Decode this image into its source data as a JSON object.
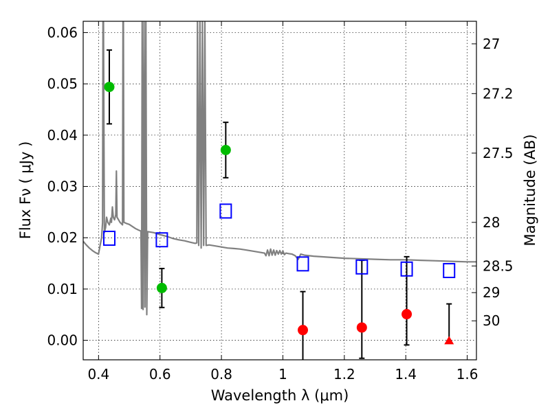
{
  "chart_data": {
    "type": "scatter",
    "title": "",
    "xlabel": "Wavelength  λ (μm)",
    "ylabel": "Flux  Fν  ( μJy )",
    "ylabel_right": "Magnitude (AB)",
    "xlim": [
      0.35,
      1.63
    ],
    "ylim": [
      -0.0038,
      0.0622
    ],
    "grid": true,
    "x_ticks": [
      0.4,
      0.6,
      0.8,
      1.0,
      1.2,
      1.4,
      1.6
    ],
    "x_tick_labels": [
      "0.4",
      "0.6",
      "0.8",
      "1",
      "1.2",
      "1.4",
      "1.6"
    ],
    "y_ticks": [
      0.0,
      0.01,
      0.02,
      0.03,
      0.04,
      0.05,
      0.06
    ],
    "y_tick_labels": [
      "0.00",
      "0.01",
      "0.02",
      "0.03",
      "0.04",
      "0.05",
      "0.06"
    ],
    "right_ticks": [
      {
        "label": "27",
        "flux": 0.0578
      },
      {
        "label": "27.2",
        "flux": 0.0481
      },
      {
        "label": "27.5",
        "flux": 0.0365
      },
      {
        "label": "28",
        "flux": 0.023
      },
      {
        "label": "28.5",
        "flux": 0.0145
      },
      {
        "label": "29",
        "flux": 0.0093
      },
      {
        "label": "30",
        "flux": 0.0038
      }
    ],
    "series": [
      {
        "marker": "circle",
        "color": "#00bb00",
        "points": [
          {
            "x": 0.435,
            "y": 0.0494,
            "err_low": 0.0072,
            "err_high": 0.0072
          },
          {
            "x": 0.606,
            "y": 0.0102,
            "err_low": 0.0038,
            "err_high": 0.0038
          },
          {
            "x": 0.814,
            "y": 0.0371,
            "err_low": 0.0054,
            "err_high": 0.0054
          }
        ]
      },
      {
        "marker": "circle",
        "color": "#ff0000",
        "points": [
          {
            "x": 1.065,
            "y": 0.002,
            "err_low": 0.006,
            "err_high": 0.0075
          },
          {
            "x": 1.257,
            "y": 0.0025,
            "err_low": 0.006,
            "err_high": 0.0131
          },
          {
            "x": 1.403,
            "y": 0.0051,
            "err_low": 0.006,
            "err_high": 0.0112
          }
        ]
      },
      {
        "marker": "triangle",
        "color": "#ff0000",
        "points": [
          {
            "x": 1.541,
            "y": -0.0001,
            "err_low": 0.0,
            "err_high": 0.0072
          }
        ]
      },
      {
        "marker": "open-square",
        "color": "#0000ff",
        "points": [
          {
            "x": 0.435,
            "y": 0.0199
          },
          {
            "x": 0.606,
            "y": 0.0196
          },
          {
            "x": 0.814,
            "y": 0.0252
          },
          {
            "x": 1.065,
            "y": 0.0149
          },
          {
            "x": 1.257,
            "y": 0.0143
          },
          {
            "x": 1.403,
            "y": 0.0139
          },
          {
            "x": 1.541,
            "y": 0.0136
          }
        ]
      }
    ],
    "template_spectrum": {
      "color": "#808080",
      "points": [
        [
          0.35,
          0.0193
        ],
        [
          0.36,
          0.0186
        ],
        [
          0.37,
          0.018
        ],
        [
          0.38,
          0.0175
        ],
        [
          0.39,
          0.0171
        ],
        [
          0.4,
          0.0168
        ],
        [
          0.405,
          0.0185
        ],
        [
          0.41,
          0.02
        ],
        [
          0.413,
          0.023
        ],
        [
          0.4145,
          0.062
        ],
        [
          0.416,
          0.062
        ],
        [
          0.419,
          0.021
        ],
        [
          0.423,
          0.022
        ],
        [
          0.426,
          0.024
        ],
        [
          0.43,
          0.023
        ],
        [
          0.435,
          0.0225
        ],
        [
          0.44,
          0.0238
        ],
        [
          0.442,
          0.023
        ],
        [
          0.445,
          0.026
        ],
        [
          0.448,
          0.024
        ],
        [
          0.452,
          0.0235
        ],
        [
          0.456,
          0.0245
        ],
        [
          0.458,
          0.033
        ],
        [
          0.46,
          0.024
        ],
        [
          0.47,
          0.023
        ],
        [
          0.478,
          0.0225
        ],
        [
          0.4795,
          0.062
        ],
        [
          0.481,
          0.062
        ],
        [
          0.4825,
          0.023
        ],
        [
          0.49,
          0.0228
        ],
        [
          0.5,
          0.0226
        ],
        [
          0.51,
          0.0222
        ],
        [
          0.52,
          0.0218
        ],
        [
          0.53,
          0.0215
        ],
        [
          0.538,
          0.0213
        ],
        [
          0.54,
          0.0062
        ],
        [
          0.542,
          0.062
        ],
        [
          0.545,
          0.006
        ],
        [
          0.548,
          0.062
        ],
        [
          0.551,
          0.0065
        ],
        [
          0.554,
          0.062
        ],
        [
          0.557,
          0.005
        ],
        [
          0.56,
          0.0212
        ],
        [
          0.58,
          0.021
        ],
        [
          0.6,
          0.0206
        ],
        [
          0.62,
          0.0203
        ],
        [
          0.64,
          0.0199
        ],
        [
          0.66,
          0.0196
        ],
        [
          0.68,
          0.0194
        ],
        [
          0.7,
          0.0191
        ],
        [
          0.715,
          0.0189
        ],
        [
          0.72,
          0.019
        ],
        [
          0.722,
          0.062
        ],
        [
          0.726,
          0.0185
        ],
        [
          0.73,
          0.062
        ],
        [
          0.734,
          0.018
        ],
        [
          0.738,
          0.062
        ],
        [
          0.742,
          0.0185
        ],
        [
          0.746,
          0.062
        ],
        [
          0.75,
          0.0185
        ],
        [
          0.76,
          0.0186
        ],
        [
          0.78,
          0.0184
        ],
        [
          0.8,
          0.0182
        ],
        [
          0.82,
          0.018
        ],
        [
          0.84,
          0.0179
        ],
        [
          0.86,
          0.0178
        ],
        [
          0.88,
          0.0176
        ],
        [
          0.9,
          0.0174
        ],
        [
          0.92,
          0.0172
        ],
        [
          0.94,
          0.017
        ],
        [
          0.945,
          0.0165
        ],
        [
          0.95,
          0.0176
        ],
        [
          0.955,
          0.0165
        ],
        [
          0.96,
          0.0178
        ],
        [
          0.965,
          0.0166
        ],
        [
          0.97,
          0.0176
        ],
        [
          0.975,
          0.0166
        ],
        [
          0.98,
          0.0175
        ],
        [
          0.985,
          0.0168
        ],
        [
          0.99,
          0.0175
        ],
        [
          0.995,
          0.0168
        ],
        [
          1.0,
          0.0174
        ],
        [
          1.005,
          0.0167
        ],
        [
          1.01,
          0.017
        ],
        [
          1.02,
          0.0169
        ],
        [
          1.03,
          0.0168
        ],
        [
          1.04,
          0.0165
        ],
        [
          1.05,
          0.0158
        ],
        [
          1.058,
          0.0168
        ],
        [
          1.07,
          0.0166
        ],
        [
          1.1,
          0.0164
        ],
        [
          1.15,
          0.0162
        ],
        [
          1.2,
          0.016
        ],
        [
          1.25,
          0.0159
        ],
        [
          1.3,
          0.0158
        ],
        [
          1.35,
          0.0157
        ],
        [
          1.4,
          0.0157
        ],
        [
          1.45,
          0.0156
        ],
        [
          1.5,
          0.0155
        ],
        [
          1.55,
          0.0154
        ],
        [
          1.6,
          0.0153
        ],
        [
          1.63,
          0.0153
        ]
      ]
    }
  }
}
